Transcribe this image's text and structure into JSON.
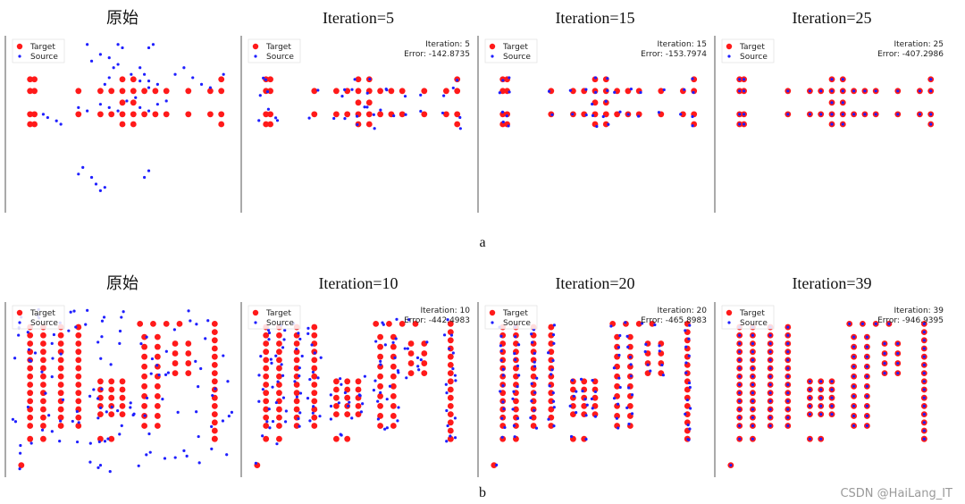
{
  "watermark": "CSDN @HaiLang_IT",
  "colors": {
    "target": "#ff1a1a",
    "source": "#1f1fff"
  },
  "rows": [
    {
      "label": "a",
      "panels": [
        {
          "title": "原始",
          "info": []
        },
        {
          "title": "Iteration=5",
          "info": [
            "Iteration: 5",
            "Error: -142.8735"
          ]
        },
        {
          "title": "Iteration=15",
          "info": [
            "Iteration: 15",
            "Error: -153.7974"
          ]
        },
        {
          "title": "Iteration=25",
          "info": [
            "Iteration: 25",
            "Error: -407.2986"
          ]
        }
      ]
    },
    {
      "label": "b",
      "panels": [
        {
          "title": "原始",
          "info": []
        },
        {
          "title": "Iteration=10",
          "info": [
            "Iteration: 10",
            "Error: -442.4983"
          ]
        },
        {
          "title": "Iteration=20",
          "info": [
            "Iteration: 20",
            "Error: -465.8983"
          ]
        },
        {
          "title": "Iteration=39",
          "info": [
            "Iteration: 39",
            "Error: -946.9395"
          ]
        }
      ]
    }
  ],
  "chart_data": [
    {
      "type": "scatter",
      "row": "a",
      "legend": [
        "Target",
        "Source"
      ],
      "legend_position": "top-left",
      "xlim": [
        0,
        100
      ],
      "ylim": [
        0,
        100
      ],
      "target_points": [
        [
          8,
          77
        ],
        [
          10,
          77
        ],
        [
          8,
          70
        ],
        [
          10,
          70
        ],
        [
          8,
          56
        ],
        [
          10,
          56
        ],
        [
          8,
          50
        ],
        [
          10,
          50
        ],
        [
          30,
          70
        ],
        [
          40,
          70
        ],
        [
          45,
          70
        ],
        [
          50,
          70
        ],
        [
          55,
          70
        ],
        [
          60,
          70
        ],
        [
          65,
          70
        ],
        [
          70,
          70
        ],
        [
          80,
          70
        ],
        [
          90,
          70
        ],
        [
          50,
          77
        ],
        [
          55,
          77
        ],
        [
          50,
          63
        ],
        [
          55,
          63
        ],
        [
          30,
          56
        ],
        [
          40,
          56
        ],
        [
          45,
          56
        ],
        [
          50,
          56
        ],
        [
          55,
          56
        ],
        [
          60,
          56
        ],
        [
          65,
          56
        ],
        [
          70,
          56
        ],
        [
          80,
          56
        ],
        [
          90,
          56
        ],
        [
          50,
          50
        ],
        [
          55,
          50
        ],
        [
          95,
          77
        ],
        [
          95,
          70
        ],
        [
          95,
          56
        ],
        [
          95,
          50
        ]
      ],
      "panels": [
        {
          "source_points": [
            [
              14,
              56
            ],
            [
              16,
              54
            ],
            [
              20,
              52
            ],
            [
              22,
              50
            ],
            [
              30,
              60
            ],
            [
              34,
              58
            ],
            [
              40,
              62
            ],
            [
              44,
              60
            ],
            [
              48,
              58
            ],
            [
              52,
              64
            ],
            [
              56,
              66
            ],
            [
              58,
              60
            ],
            [
              62,
              58
            ],
            [
              66,
              62
            ],
            [
              70,
              64
            ],
            [
              62,
              72
            ],
            [
              58,
              76
            ],
            [
              54,
              80
            ],
            [
              48,
              86
            ],
            [
              46,
              84
            ],
            [
              44,
              78
            ],
            [
              42,
              74
            ],
            [
              36,
              88
            ],
            [
              40,
              92
            ],
            [
              44,
              90
            ],
            [
              50,
              96
            ],
            [
              58,
              84
            ],
            [
              60,
              80
            ],
            [
              62,
              76
            ],
            [
              66,
              74
            ],
            [
              74,
              80
            ],
            [
              78,
              84
            ],
            [
              82,
              78
            ],
            [
              86,
              74
            ],
            [
              90,
              72
            ],
            [
              96,
              80
            ],
            [
              64,
              98
            ],
            [
              62,
              96
            ],
            [
              48,
              98
            ],
            [
              34,
              98
            ],
            [
              32,
              24
            ],
            [
              30,
              20
            ],
            [
              36,
              18
            ],
            [
              38,
              14
            ],
            [
              40,
              10
            ],
            [
              42,
              12
            ],
            [
              60,
              18
            ],
            [
              62,
              22
            ]
          ]
        }
      ]
    }
  ]
}
